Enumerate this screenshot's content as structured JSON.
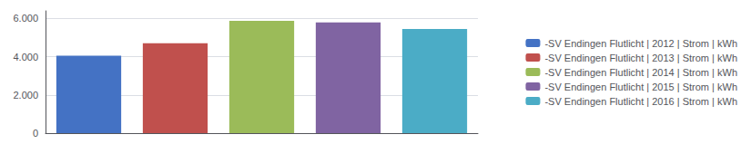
{
  "chart_data": {
    "type": "bar",
    "categories": [
      null,
      null,
      null,
      null,
      null
    ],
    "series": [
      {
        "name": "-SV Endingen Flutlicht | 2012 | Strom | kWh",
        "color": "#4472C4",
        "values": [
          4050,
          null,
          null,
          null,
          null
        ]
      },
      {
        "name": "-SV Endingen Flutlicht | 2013 | Strom | kWh",
        "color": "#C0504D",
        "values": [
          null,
          4700,
          null,
          null,
          null
        ]
      },
      {
        "name": "-SV Endingen Flutlicht | 2014 | Strom | kWh",
        "color": "#9BBB59",
        "values": [
          null,
          null,
          5880,
          null,
          null
        ]
      },
      {
        "name": "-SV Endingen Flutlicht | 2015 | Strom | kWh",
        "color": "#8064A2",
        "values": [
          null,
          null,
          null,
          5790,
          null
        ]
      },
      {
        "name": "-SV Endingen Flutlicht | 2016 | Strom | kWh",
        "color": "#4BACC6",
        "values": [
          null,
          null,
          null,
          null,
          5450
        ]
      }
    ],
    "ylim": [
      0,
      6400
    ],
    "yticks": [
      0,
      {
        "value": 2000,
        "label": "2.000"
      },
      {
        "value": 4000,
        "label": "4.000"
      },
      {
        "value": 6000,
        "label": "6.000"
      }
    ],
    "grid": true,
    "legend": "right"
  }
}
